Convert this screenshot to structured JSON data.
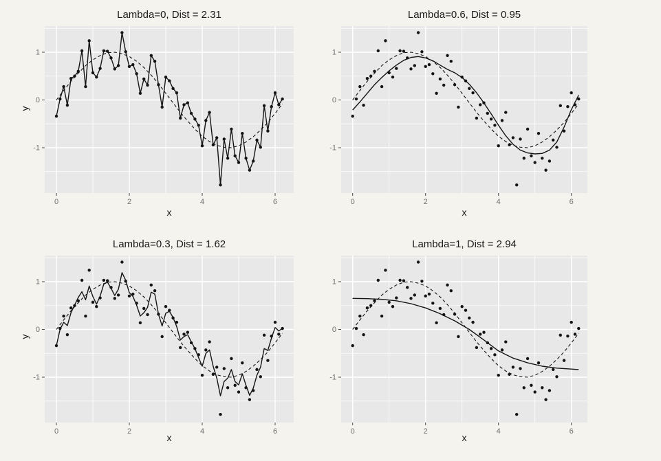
{
  "figure": {
    "description": "2x2 grid of smoothing comparison plots of noisy sine data with different lambda values",
    "colors": {
      "outer_background": "#f5f3ee",
      "panel_background": "#e8e8e8",
      "gridline": "#ffffff",
      "point": "#141414",
      "line": "#141414",
      "tick_label": "#707070",
      "tick_mark": "#4a4a4a",
      "title_text": "#1a1a1a"
    }
  },
  "chart_data": {
    "type": "scatter",
    "layout": "2x2 grid, shared data in every panel",
    "xlabel": "x",
    "ylabel": "y",
    "xticks": [
      0,
      2,
      4,
      6
    ],
    "yticks": [
      -1,
      0,
      1
    ],
    "xlim": [
      -0.32,
      6.5
    ],
    "ylim": [
      -1.95,
      1.55
    ],
    "grid": "white major and minor gridlines on gray panel",
    "x": [
      0.0,
      0.1,
      0.2,
      0.3,
      0.4,
      0.5,
      0.6,
      0.7,
      0.8,
      0.9,
      1.0,
      1.1,
      1.2,
      1.3,
      1.4,
      1.5,
      1.6,
      1.7,
      1.8,
      1.9,
      2.0,
      2.1,
      2.2,
      2.3,
      2.4,
      2.5,
      2.6,
      2.7,
      2.8,
      2.9,
      3.0,
      3.1,
      3.2,
      3.3,
      3.4,
      3.5,
      3.6,
      3.7,
      3.8,
      3.9,
      4.0,
      4.1,
      4.2,
      4.3,
      4.4,
      4.5,
      4.6,
      4.7,
      4.8,
      4.9,
      5.0,
      5.1,
      5.2,
      5.3,
      5.4,
      5.5,
      5.6,
      5.7,
      5.8,
      5.9,
      6.0,
      6.1,
      6.2
    ],
    "y": [
      -0.34,
      0.02,
      0.28,
      -0.11,
      0.45,
      0.5,
      0.6,
      1.03,
      0.28,
      1.24,
      0.57,
      0.48,
      0.66,
      1.03,
      1.02,
      0.88,
      0.65,
      0.72,
      1.41,
      1.01,
      0.7,
      0.74,
      0.55,
      0.14,
      0.44,
      0.31,
      0.93,
      0.81,
      0.32,
      -0.15,
      0.48,
      0.4,
      0.24,
      0.15,
      -0.38,
      -0.1,
      -0.06,
      -0.28,
      -0.4,
      -0.53,
      -0.96,
      -0.43,
      -0.26,
      -0.94,
      -0.79,
      -1.78,
      -0.82,
      -1.22,
      -0.61,
      -1.17,
      -1.31,
      -0.7,
      -1.22,
      -1.47,
      -1.28,
      -0.84,
      -0.99,
      -0.12,
      -0.65,
      -0.14,
      0.15,
      -0.1,
      0.02
    ],
    "true_curve": {
      "label": "sin(x)",
      "style": "dashed",
      "x": [
        0.0,
        0.2,
        0.4,
        0.6,
        0.8,
        1.0,
        1.2,
        1.4,
        1.6,
        1.8,
        2.0,
        2.2,
        2.4,
        2.6,
        2.8,
        3.0,
        3.2,
        3.4,
        3.6,
        3.8,
        4.0,
        4.2,
        4.4,
        4.6,
        4.8,
        5.0,
        5.2,
        5.4,
        5.6,
        5.8,
        6.0,
        6.2
      ],
      "y": [
        0.0,
        0.2,
        0.39,
        0.56,
        0.72,
        0.84,
        0.93,
        0.99,
        1.0,
        0.97,
        0.91,
        0.81,
        0.68,
        0.52,
        0.34,
        0.14,
        -0.06,
        -0.26,
        -0.44,
        -0.61,
        -0.76,
        -0.87,
        -0.95,
        -0.99,
        -1.0,
        -0.96,
        -0.88,
        -0.77,
        -0.63,
        -0.47,
        -0.28,
        -0.08
      ]
    },
    "panels": [
      {
        "position": "top-left",
        "title": "Lambda=0, Dist = 2.31",
        "lambda": "0",
        "dist": "2.31",
        "fit": "interpolation",
        "fit_note": "solid line passes through every data point"
      },
      {
        "position": "top-right",
        "title": "Lambda=0.6, Dist = 0.95",
        "lambda": "0.6",
        "dist": "0.95",
        "fit": "smooth",
        "fit_x": [
          0.0,
          0.2,
          0.4,
          0.6,
          0.8,
          1.0,
          1.2,
          1.4,
          1.6,
          1.8,
          2.0,
          2.2,
          2.4,
          2.6,
          2.8,
          3.0,
          3.2,
          3.4,
          3.6,
          3.8,
          4.0,
          4.2,
          4.4,
          4.6,
          4.8,
          5.0,
          5.2,
          5.4,
          5.6,
          5.8,
          6.0,
          6.2
        ],
        "fit_y": [
          -0.21,
          -0.04,
          0.14,
          0.32,
          0.47,
          0.61,
          0.73,
          0.83,
          0.89,
          0.91,
          0.88,
          0.82,
          0.73,
          0.64,
          0.57,
          0.47,
          0.33,
          0.15,
          -0.06,
          -0.29,
          -0.53,
          -0.75,
          -0.93,
          -1.05,
          -1.11,
          -1.13,
          -1.12,
          -1.05,
          -0.88,
          -0.57,
          -0.2,
          0.1
        ]
      },
      {
        "position": "bottom-left",
        "title": "Lambda=0.3, Dist = 1.62",
        "lambda": "0.3",
        "dist": "1.62",
        "fit": "near-interpolation",
        "fit_y": [
          -0.34,
          0.0,
          0.15,
          0.08,
          0.35,
          0.51,
          0.67,
          0.79,
          0.62,
          0.91,
          0.69,
          0.53,
          0.7,
          0.95,
          0.99,
          0.86,
          0.71,
          0.84,
          1.19,
          1.03,
          0.77,
          0.69,
          0.51,
          0.28,
          0.35,
          0.46,
          0.78,
          0.74,
          0.32,
          0.07,
          0.34,
          0.38,
          0.25,
          0.06,
          -0.22,
          -0.15,
          -0.11,
          -0.26,
          -0.4,
          -0.59,
          -0.77,
          -0.5,
          -0.43,
          -0.77,
          -1.02,
          -1.39,
          -1.09,
          -1.02,
          -0.84,
          -1.09,
          -1.16,
          -0.93,
          -1.17,
          -1.38,
          -1.23,
          -0.96,
          -0.79,
          -0.4,
          -0.44,
          -0.18,
          0.04,
          -0.03,
          0.02
        ]
      },
      {
        "position": "bottom-right",
        "title": "Lambda=1, Dist = 2.94",
        "lambda": "1",
        "dist": "2.94",
        "fit": "smooth",
        "fit_x": [
          0.0,
          0.4,
          0.8,
          1.2,
          1.6,
          2.0,
          2.4,
          2.8,
          3.2,
          3.6,
          4.0,
          4.4,
          4.8,
          5.2,
          5.6,
          6.0,
          6.2
        ],
        "fit_y": [
          0.65,
          0.645,
          0.63,
          0.6,
          0.54,
          0.45,
          0.33,
          0.18,
          0.0,
          -0.22,
          -0.45,
          -0.6,
          -0.7,
          -0.77,
          -0.81,
          -0.83,
          -0.84
        ]
      }
    ]
  }
}
